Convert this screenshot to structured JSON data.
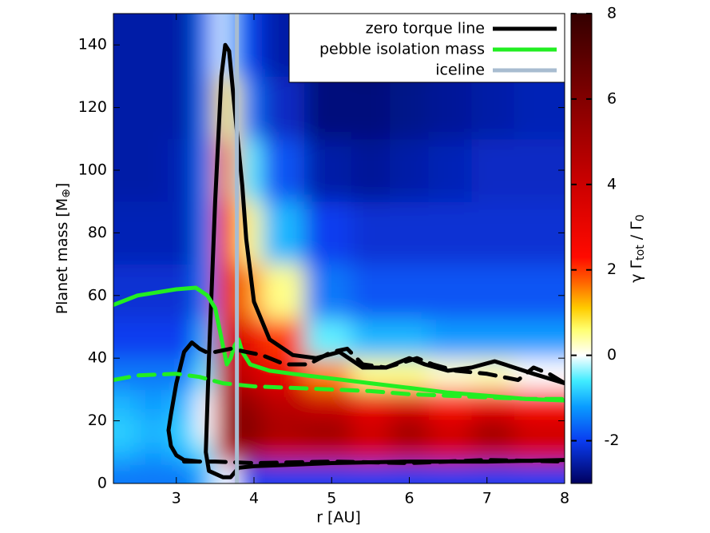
{
  "chart_data": {
    "type": "heatmap-lines",
    "x_label": "r [AU]",
    "y_label": [
      {
        "text": "Planet mass [M"
      },
      {
        "sub": "⊕"
      },
      {
        "text": "]"
      }
    ],
    "colorbar_label": [
      {
        "text": "γ Γ"
      },
      {
        "sub": "tot"
      },
      {
        "text": " / Γ"
      },
      {
        "sub": "0"
      }
    ],
    "xlim": [
      2.19,
      8
    ],
    "xticks": [
      3,
      4,
      5,
      6,
      7,
      8
    ],
    "ylim": [
      0,
      150
    ],
    "yticks": [
      0,
      20,
      40,
      60,
      80,
      100,
      120,
      140
    ],
    "zlim": [
      -3,
      8
    ],
    "zticks": [
      -2,
      0,
      2,
      4,
      6,
      8
    ],
    "colormap": [
      {
        "value": -3,
        "color": "#00005e"
      },
      {
        "value": -2,
        "color": "#0a3cf0"
      },
      {
        "value": -1.2,
        "color": "#0a9cff"
      },
      {
        "value": -0.6,
        "color": "#40ecff"
      },
      {
        "value": 0,
        "color": "#ffffff"
      },
      {
        "value": 0.6,
        "color": "#ffff70"
      },
      {
        "value": 1.1,
        "color": "#ffcc00"
      },
      {
        "value": 1.7,
        "color": "#ff6600"
      },
      {
        "value": 2.3,
        "color": "#ff0a00"
      },
      {
        "value": 4,
        "color": "#cc0000"
      },
      {
        "value": 6,
        "color": "#820000"
      },
      {
        "value": 8,
        "color": "#330000"
      }
    ],
    "heatmap": {
      "x": [
        2.3,
        2.7,
        3.1,
        3.4,
        3.6,
        3.7,
        3.9,
        4.3,
        5,
        5.5,
        6,
        6.5,
        7.1,
        7.6
      ],
      "y": [
        3,
        10,
        16,
        25,
        35,
        45,
        60,
        80,
        100,
        120,
        140
      ],
      "z": [
        [
          -1.5,
          -1.5,
          -1.5,
          -1,
          0,
          0,
          -2,
          -2,
          -2,
          -2,
          -2,
          -2,
          -2,
          -2
        ],
        [
          -1,
          -1.2,
          -1,
          -0.5,
          3,
          5,
          5,
          4,
          4,
          3.5,
          4,
          3.5,
          4,
          3.5
        ],
        [
          -0.8,
          -1,
          -0.8,
          0,
          4,
          6.5,
          6,
          5,
          5.5,
          4,
          5.5,
          4,
          5.5,
          4
        ],
        [
          -1,
          -1.2,
          -1,
          0,
          4,
          6,
          5.5,
          4.5,
          4,
          3,
          3.5,
          2.5,
          3,
          2.5
        ],
        [
          -1.5,
          -1.5,
          -1.5,
          -0.5,
          3.5,
          5,
          4,
          3,
          1.5,
          0.5,
          0.5,
          0.2,
          0.3,
          0
        ],
        [
          -2,
          -2,
          -2,
          -1,
          3,
          4.5,
          3,
          2,
          -0.5,
          -1,
          -1,
          -1.2,
          -1.2,
          -1.2
        ],
        [
          -2.2,
          -2.2,
          -2.2,
          -1.5,
          2.5,
          3.5,
          1.5,
          0.5,
          -1.5,
          -1.8,
          -1.8,
          -1.8,
          -1.8,
          -1.8
        ],
        [
          -2.4,
          -2.4,
          -2.4,
          -1.5,
          2,
          2.5,
          0.5,
          -1,
          -2,
          -2.2,
          -2.2,
          -2.2,
          -2.2,
          -2.2
        ],
        [
          -2.5,
          -2.5,
          -2.4,
          -1.5,
          1.5,
          1.5,
          -0.5,
          -1.8,
          -2.5,
          -2.6,
          -2.5,
          -2.4,
          -2.3,
          -2.3
        ],
        [
          -2.5,
          -2.5,
          -2.5,
          -1.5,
          1,
          0.5,
          -1.5,
          -2.3,
          -2.8,
          -2.8,
          -2.7,
          -2.6,
          -2.5,
          -2.4
        ],
        [
          -2.5,
          -2.5,
          -2.5,
          -1.5,
          0,
          -1,
          -2,
          -2.5,
          -2.8,
          -2.9,
          -2.8,
          -2.6,
          -2.5,
          -2.4
        ]
      ]
    },
    "series": [
      {
        "name": "zero torque line",
        "color": "#000000",
        "dash": false,
        "x": [
          8,
          7.6,
          7.1,
          6.8,
          6.5,
          6.2,
          6,
          5.7,
          5.4,
          5.1,
          4.8,
          4.5,
          4.2,
          4,
          3.9,
          3.85,
          3.75,
          3.68,
          3.63,
          3.58,
          3.5,
          3.42,
          3.38,
          3.42,
          3.6,
          3.7,
          3.8,
          4,
          5,
          6,
          7,
          8
        ],
        "values": [
          32,
          35,
          39,
          37,
          36,
          38,
          40,
          37,
          37,
          42,
          40,
          41,
          46,
          58,
          78,
          95,
          120,
          138,
          140,
          130,
          90,
          40,
          10,
          4,
          2,
          2,
          5,
          5.5,
          6.5,
          7,
          7,
          7.5
        ]
      },
      {
        "name": "pebble isolation mass",
        "color": "#22ee22",
        "dash": false,
        "x": [
          2.19,
          2.5,
          3,
          3.25,
          3.4,
          3.5,
          3.6,
          3.65,
          3.7,
          3.75,
          3.8,
          3.85,
          3.95,
          4.2,
          4.5,
          5,
          5.5,
          6,
          6.5,
          7,
          7.5,
          8
        ],
        "values": [
          57,
          60,
          62,
          62.5,
          60,
          56,
          44,
          38,
          40,
          44,
          46,
          42,
          38,
          36,
          35,
          33.5,
          32,
          30.5,
          29,
          28,
          27,
          26.5
        ]
      },
      {
        "color": "#000000",
        "dash": false,
        "x": [
          3.38,
          3.3,
          3.2,
          3.1,
          3.0,
          2.93,
          2.9,
          2.93,
          3.0,
          3.1,
          3.3
        ],
        "values": [
          42,
          43,
          45,
          42,
          32,
          22,
          17,
          12,
          9,
          7.5,
          7
        ]
      },
      {
        "color": "#000000",
        "dash": true,
        "x": [
          3.5,
          3.7,
          3.9,
          4.1,
          4.4,
          4.7,
          5,
          5.2,
          5.4,
          5.7,
          6.1,
          6.3,
          6.6,
          7,
          7.4,
          7.6,
          7.8,
          8
        ],
        "values": [
          42,
          43,
          42,
          41,
          38,
          38,
          42,
          43,
          38,
          37,
          40,
          38,
          36,
          35,
          33,
          37,
          35,
          32
        ]
      },
      {
        "color": "#000000",
        "dash": true,
        "x": [
          3.1,
          3.5,
          4,
          5,
          6,
          7,
          8
        ],
        "values": [
          7,
          7,
          6.5,
          7,
          6.5,
          7.5,
          7
        ]
      },
      {
        "color": "#22ee22",
        "dash": true,
        "x": [
          2.19,
          2.5,
          3,
          3.3,
          3.6,
          4,
          4.5,
          5,
          5.5,
          6,
          6.5,
          7,
          7.5,
          8
        ],
        "values": [
          33,
          34.5,
          35,
          34,
          32,
          31,
          30.5,
          30,
          29.5,
          28.5,
          28,
          27.5,
          27,
          27
        ]
      }
    ],
    "iceline": {
      "name": "iceline",
      "x": 3.78,
      "color": "#a8bcd0"
    }
  }
}
